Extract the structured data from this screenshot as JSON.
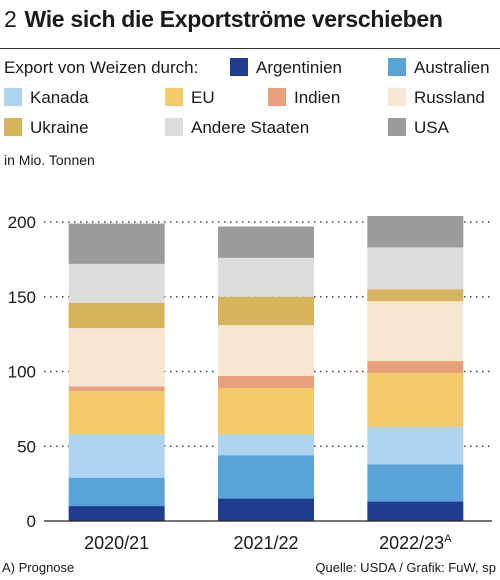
{
  "header": {
    "number": "2",
    "title": "Wie sich die Exportströme verschieben"
  },
  "legend": {
    "lead": "Export von Weizen durch:"
  },
  "unit_label": "in Mio. Tonnen",
  "footer": {
    "note": "A) Prognose",
    "source": "Quelle: USDA / Grafik: FuW, sp"
  },
  "chart_data": {
    "type": "bar",
    "stacked": true,
    "title": "Wie sich die Exportströme verschieben",
    "ylabel": "in Mio. Tonnen",
    "ylim": [
      0,
      200
    ],
    "yticks": [
      0,
      50,
      100,
      150,
      200
    ],
    "grid": "dotted horizontal",
    "legend_position": "top",
    "categories": [
      "2020/21",
      "2021/22",
      "2022/23"
    ],
    "category_superscripts": [
      "",
      "",
      "A"
    ],
    "series": [
      {
        "name": "Argentinien",
        "color": "#1f3d8f",
        "values": [
          10,
          15,
          13
        ]
      },
      {
        "name": "Australien",
        "color": "#5aa3d8",
        "values": [
          19,
          29,
          25
        ]
      },
      {
        "name": "Kanada",
        "color": "#aed4f0",
        "values": [
          29,
          14,
          25
        ]
      },
      {
        "name": "EU",
        "color": "#f3cb6a",
        "values": [
          29,
          31,
          36
        ]
      },
      {
        "name": "Indien",
        "color": "#e8a07c",
        "values": [
          3,
          8,
          8
        ]
      },
      {
        "name": "Russland",
        "color": "#f6e6d3",
        "values": [
          39,
          34,
          40
        ]
      },
      {
        "name": "Ukraine",
        "color": "#d6b35d",
        "values": [
          17,
          19,
          8
        ]
      },
      {
        "name": "Andere Staaten",
        "color": "#dcdcdc",
        "values": [
          26,
          26,
          28
        ]
      },
      {
        "name": "USA",
        "color": "#9b9b9b",
        "values": [
          27,
          21,
          21
        ]
      }
    ]
  }
}
